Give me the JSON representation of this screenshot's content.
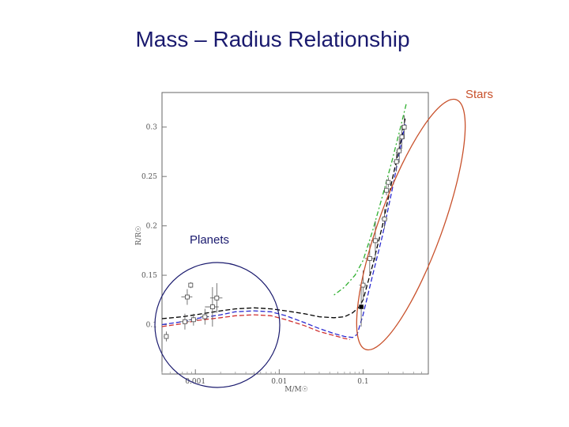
{
  "slide": {
    "title": "Mass – Radius Relationship",
    "stars_label": "Stars",
    "planets_label": "Planets"
  },
  "colors": {
    "title": "#1a1a6e",
    "stars_annotation": "#c8502a",
    "planets_annotation": "#1a1a6e",
    "curve_black": "#000000",
    "curve_blue": "#2a2ad0",
    "curve_red": "#d03030",
    "curve_green": "#30b030"
  },
  "chart_data": {
    "type": "scatter",
    "xlabel": "M/M☉",
    "ylabel": "R/R☉",
    "x_scale": "log",
    "xlim": [
      0.0004,
      0.6
    ],
    "ylim": [
      0.05,
      0.335
    ],
    "x_tick_labels": [
      "0.001",
      "0.01",
      "0.1"
    ],
    "x_tick_values": [
      0.001,
      0.01,
      0.1
    ],
    "y_tick_labels": [
      "0.1",
      "0.15",
      "0.2",
      "0.25",
      "0.3"
    ],
    "y_tick_values": [
      0.1,
      0.15,
      0.2,
      0.25,
      0.3
    ],
    "points": [
      {
        "x": 0.00045,
        "y": 0.088,
        "xerr": 3e-05,
        "yerr": 0.005
      },
      {
        "x": 0.00075,
        "y": 0.103,
        "xerr": 0.0001,
        "yerr": 0.008
      },
      {
        "x": 0.00095,
        "y": 0.105,
        "xerr": 0.00012,
        "yerr": 0.006
      },
      {
        "x": 0.0008,
        "y": 0.128,
        "xerr": 0.00012,
        "yerr": 0.008
      },
      {
        "x": 0.00088,
        "y": 0.14,
        "xerr": 5e-05,
        "yerr": 0.003
      },
      {
        "x": 0.0013,
        "y": 0.108,
        "xerr": 0.00015,
        "yerr": 0.008
      },
      {
        "x": 0.0016,
        "y": 0.118,
        "xerr": 0.0003,
        "yerr": 0.02
      },
      {
        "x": 0.0018,
        "y": 0.127,
        "xerr": 0.0003,
        "yerr": 0.015
      },
      {
        "x": 0.095,
        "y": 0.118,
        "xerr": 0.008,
        "yerr": 0.02
      },
      {
        "x": 0.1,
        "y": 0.14,
        "xerr": 0.01,
        "yerr": 0.015
      },
      {
        "x": 0.12,
        "y": 0.167,
        "xerr": 0.015,
        "yerr": 0.015
      },
      {
        "x": 0.14,
        "y": 0.185,
        "xerr": 0.015,
        "yerr": 0.02
      },
      {
        "x": 0.18,
        "y": 0.207,
        "xerr": 0.015,
        "yerr": 0.01
      },
      {
        "x": 0.19,
        "y": 0.236,
        "xerr": 0.01,
        "yerr": 0.005
      },
      {
        "x": 0.2,
        "y": 0.244,
        "xerr": 0.01,
        "yerr": 0.005
      },
      {
        "x": 0.25,
        "y": 0.265,
        "xerr": 0.02,
        "yerr": 0.01
      },
      {
        "x": 0.27,
        "y": 0.276,
        "xerr": 0.02,
        "yerr": 0.012
      },
      {
        "x": 0.29,
        "y": 0.29,
        "xerr": 0.02,
        "yerr": 0.012
      },
      {
        "x": 0.31,
        "y": 0.3,
        "xerr": 0.02,
        "yerr": 0.012
      }
    ],
    "series": [
      {
        "style": "dashed",
        "color": "#000000",
        "x": [
          0.0004,
          0.0007,
          0.001,
          0.002,
          0.003,
          0.005,
          0.008,
          0.012,
          0.02,
          0.03,
          0.045,
          0.06,
          0.075,
          0.09,
          0.1,
          0.13,
          0.17,
          0.22,
          0.28,
          0.32
        ],
        "y": [
          0.106,
          0.108,
          0.11,
          0.114,
          0.116,
          0.117,
          0.116,
          0.114,
          0.111,
          0.108,
          0.107,
          0.108,
          0.112,
          0.118,
          0.125,
          0.16,
          0.2,
          0.245,
          0.285,
          0.31
        ]
      },
      {
        "style": "dashed",
        "color": "#2a2ad0",
        "x": [
          0.0004,
          0.0007,
          0.001,
          0.002,
          0.003,
          0.005,
          0.008,
          0.012,
          0.02,
          0.03,
          0.045,
          0.06,
          0.075,
          0.085,
          0.1,
          0.13,
          0.17,
          0.22,
          0.28,
          0.32
        ],
        "y": [
          0.1,
          0.103,
          0.106,
          0.11,
          0.113,
          0.114,
          0.113,
          0.109,
          0.102,
          0.096,
          0.091,
          0.088,
          0.087,
          0.09,
          0.11,
          0.15,
          0.19,
          0.235,
          0.28,
          0.305
        ]
      },
      {
        "style": "dashed",
        "color": "#d03030",
        "x": [
          0.0004,
          0.0007,
          0.001,
          0.002,
          0.003,
          0.005,
          0.008,
          0.012,
          0.02,
          0.03,
          0.045,
          0.06,
          0.07
        ],
        "y": [
          0.098,
          0.101,
          0.104,
          0.107,
          0.109,
          0.11,
          0.109,
          0.105,
          0.099,
          0.093,
          0.089,
          0.086,
          0.085
        ]
      },
      {
        "style": "dash-dot",
        "color": "#30b030",
        "x": [
          0.045,
          0.06,
          0.08,
          0.1,
          0.13,
          0.17,
          0.22,
          0.28,
          0.33
        ],
        "y": [
          0.13,
          0.138,
          0.15,
          0.165,
          0.195,
          0.23,
          0.265,
          0.3,
          0.325
        ]
      }
    ]
  }
}
